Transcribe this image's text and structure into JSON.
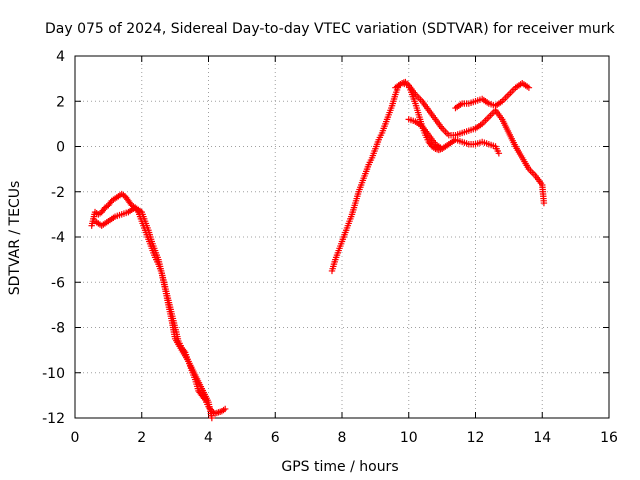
{
  "chart_data": {
    "type": "scatter",
    "title": "Day 075 of 2024, Sidereal Day-to-day VTEC variation (SDTVAR) for receiver murk",
    "xlabel": "GPS time / hours",
    "ylabel": "SDTVAR / TECUs",
    "xlim": [
      0,
      16
    ],
    "ylim": [
      -12,
      4
    ],
    "xticks": [
      "0",
      "2",
      "4",
      "6",
      "8",
      "10",
      "12",
      "14",
      "16"
    ],
    "yticks": [
      "4",
      "2",
      "0",
      "-2",
      "-4",
      "-6",
      "-8",
      "-10",
      "-12"
    ],
    "grid": true,
    "legend": "none",
    "marker": "plus",
    "color": "#ff0000",
    "series": [
      {
        "x": [
          0.5,
          0.55,
          0.6,
          0.7,
          0.8,
          0.9,
          1.0,
          1.1,
          1.2,
          1.3,
          1.4,
          1.5,
          1.6,
          1.7,
          1.8,
          1.9,
          2.0,
          2.1,
          2.2,
          2.3,
          2.4,
          2.5,
          2.6,
          2.7,
          2.8,
          2.9,
          3.0,
          3.1,
          3.2,
          3.3,
          3.4,
          3.5,
          3.6,
          3.7,
          3.8,
          3.9,
          4.0,
          4.1,
          4.2,
          4.3,
          4.4,
          4.5
        ],
        "y": [
          -3.5,
          -3.2,
          -2.9,
          -3.0,
          -2.9,
          -2.7,
          -2.6,
          -2.4,
          -2.3,
          -2.2,
          -2.1,
          -2.2,
          -2.4,
          -2.6,
          -2.7,
          -2.9,
          -3.3,
          -3.7,
          -4.1,
          -4.5,
          -4.9,
          -5.2,
          -5.6,
          -6.2,
          -6.8,
          -7.4,
          -8.0,
          -8.6,
          -8.9,
          -9.1,
          -9.5,
          -9.9,
          -10.3,
          -10.8,
          -11.0,
          -11.2,
          -11.5,
          -11.7,
          -11.8,
          -11.75,
          -11.7,
          -11.6
        ]
      },
      {
        "x": [
          0.6,
          0.8,
          1.0,
          1.2,
          1.4,
          1.6,
          1.8,
          2.0,
          2.1,
          2.2,
          2.3,
          2.4,
          2.5,
          2.6,
          2.7,
          2.8,
          2.9,
          3.0,
          3.2,
          3.4,
          3.6,
          3.8,
          4.0,
          4.1
        ],
        "y": [
          -3.3,
          -3.5,
          -3.3,
          -3.1,
          -3.0,
          -2.9,
          -2.7,
          -2.9,
          -3.3,
          -3.7,
          -4.2,
          -4.6,
          -5.0,
          -5.6,
          -6.3,
          -7.0,
          -7.7,
          -8.5,
          -9.0,
          -9.5,
          -10.1,
          -10.7,
          -11.3,
          -12.0
        ]
      },
      {
        "x": [
          7.7,
          7.8,
          7.9,
          8.0,
          8.1,
          8.2,
          8.3,
          8.4,
          8.5,
          8.6,
          8.7,
          8.8,
          8.9,
          9.0,
          9.1,
          9.2,
          9.3,
          9.4,
          9.5,
          9.6,
          9.7,
          9.8,
          9.9,
          10.0,
          10.1,
          10.2,
          10.3,
          10.4,
          10.5,
          10.6,
          10.7,
          10.8,
          10.9,
          11.0
        ],
        "y": [
          -5.5,
          -5.0,
          -4.6,
          -4.2,
          -3.8,
          -3.4,
          -3.0,
          -2.5,
          -2.0,
          -1.6,
          -1.2,
          -0.8,
          -0.5,
          -0.1,
          0.3,
          0.6,
          1.0,
          1.4,
          1.8,
          2.3,
          2.7,
          2.8,
          2.85,
          2.7,
          2.3,
          1.9,
          1.4,
          0.9,
          0.5,
          0.2,
          0.0,
          -0.1,
          -0.15,
          -0.1
        ]
      },
      {
        "x": [
          9.6,
          9.8,
          10.0,
          10.2,
          10.4,
          10.6,
          10.8,
          11.0,
          11.2,
          11.4,
          11.6,
          11.8,
          12.0,
          12.2,
          12.4,
          12.6,
          12.8,
          13.0,
          13.2,
          13.4,
          13.6,
          13.8,
          14.0,
          14.05
        ],
        "y": [
          2.6,
          2.8,
          2.7,
          2.3,
          2.0,
          1.6,
          1.2,
          0.8,
          0.5,
          0.5,
          0.6,
          0.7,
          0.8,
          1.0,
          1.3,
          1.6,
          1.2,
          0.6,
          0.0,
          -0.5,
          -1.0,
          -1.3,
          -1.7,
          -2.5
        ]
      },
      {
        "x": [
          10.0,
          10.2,
          10.4,
          10.6,
          10.8,
          11.0,
          11.2,
          11.4,
          11.6,
          11.8,
          12.0,
          12.2,
          12.4,
          12.6,
          12.7
        ],
        "y": [
          1.2,
          1.1,
          0.9,
          0.5,
          0.1,
          -0.1,
          0.1,
          0.3,
          0.2,
          0.1,
          0.1,
          0.2,
          0.1,
          0.0,
          -0.3
        ]
      },
      {
        "x": [
          11.4,
          11.5,
          11.6,
          11.8,
          12.0,
          12.2,
          12.4,
          12.6,
          12.8,
          13.0,
          13.2,
          13.4,
          13.6
        ],
        "y": [
          1.7,
          1.8,
          1.9,
          1.9,
          2.0,
          2.1,
          1.9,
          1.8,
          2.0,
          2.3,
          2.6,
          2.8,
          2.6
        ]
      }
    ]
  }
}
